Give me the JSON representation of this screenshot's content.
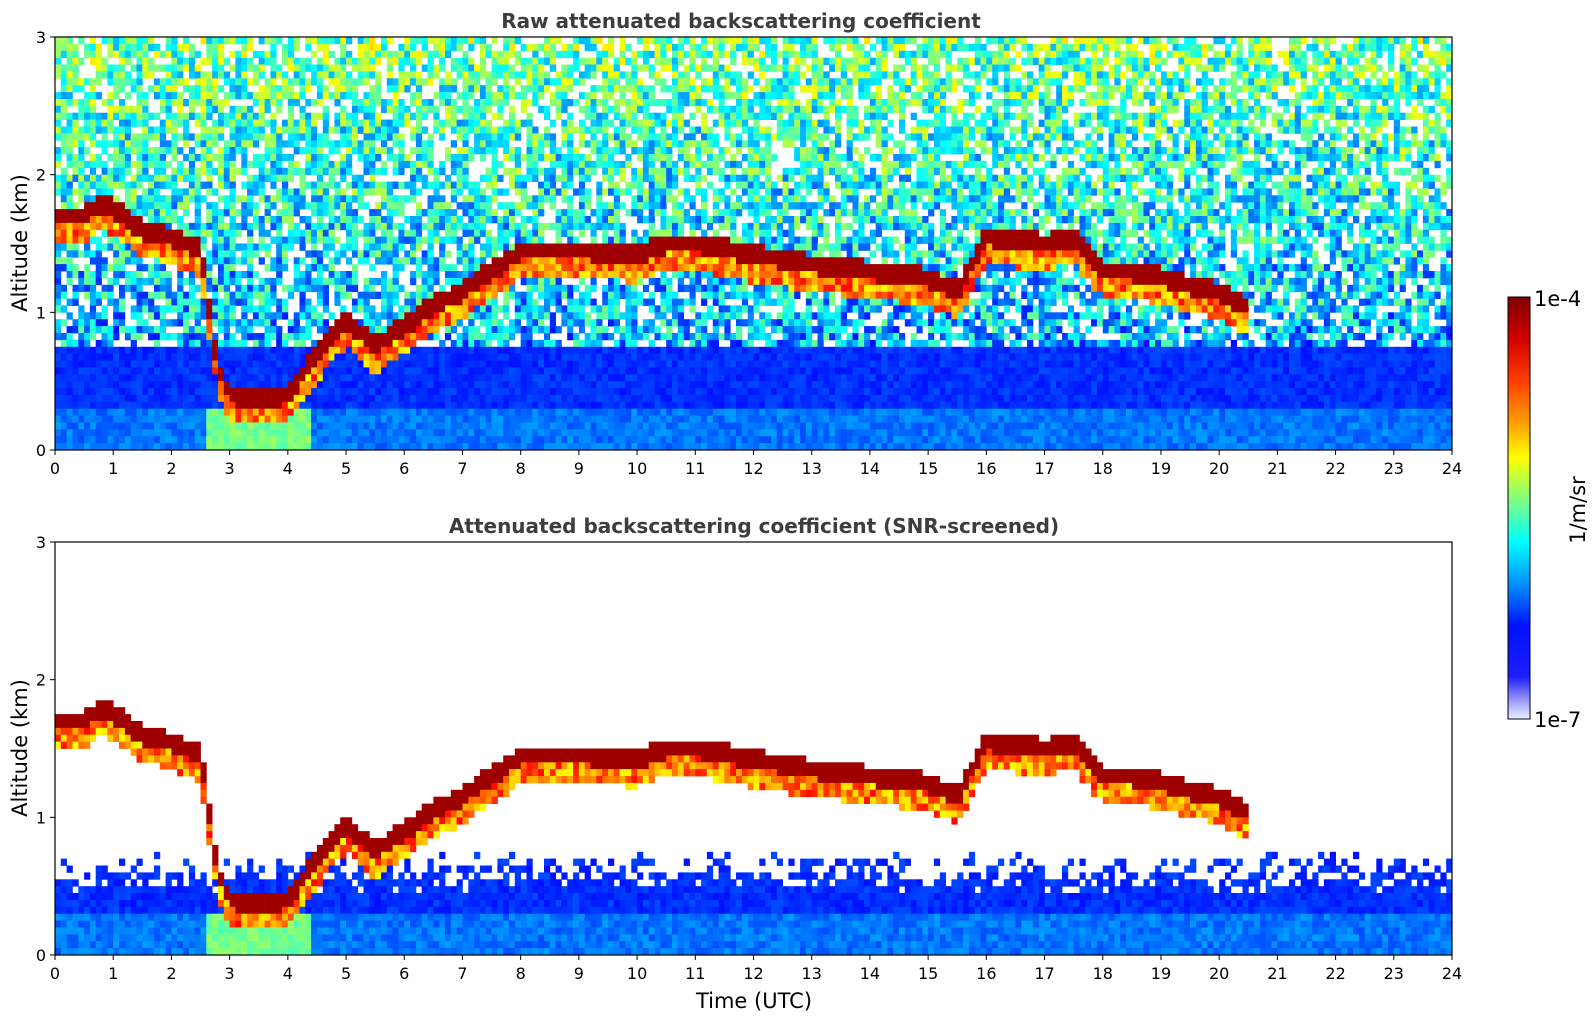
{
  "chart_data": [
    {
      "type": "heatmap",
      "title": "Raw attenuated backscattering coefficient",
      "ylabel": "Altitude (km)",
      "xlabel": "",
      "xlim": [
        0,
        24
      ],
      "ylim": [
        0,
        3
      ],
      "x_ticks": [
        "0",
        "1",
        "2",
        "3",
        "4",
        "5",
        "6",
        "7",
        "8",
        "9",
        "10",
        "11",
        "12",
        "13",
        "14",
        "15",
        "16",
        "17",
        "18",
        "19",
        "20",
        "21",
        "22",
        "23",
        "24"
      ],
      "y_ticks": [
        "0",
        "1",
        "2",
        "3"
      ],
      "colorscale": "jet",
      "cloud_layer": {
        "x": [
          0,
          0.5,
          0.8,
          1.0,
          1.5,
          2.0,
          2.5,
          2.8,
          3.0,
          3.5,
          4.0,
          4.5,
          5.0,
          5.5,
          6.0,
          6.5,
          7.0,
          7.5,
          8.0,
          9.0,
          10.0,
          10.5,
          11.0,
          12.0,
          13.0,
          14.0,
          15.0,
          15.5,
          16.0,
          17.0,
          17.5,
          18.0,
          18.5,
          19.0,
          19.5,
          20.0,
          20.4
        ],
        "y": [
          1.7,
          1.7,
          1.8,
          1.75,
          1.6,
          1.55,
          1.45,
          0.6,
          0.4,
          0.38,
          0.4,
          0.7,
          0.95,
          0.75,
          0.9,
          1.05,
          1.15,
          1.3,
          1.45,
          1.45,
          1.42,
          1.5,
          1.5,
          1.42,
          1.35,
          1.3,
          1.25,
          1.15,
          1.55,
          1.5,
          1.55,
          1.3,
          1.3,
          1.25,
          1.2,
          1.15,
          1.05
        ]
      }
    },
    {
      "type": "heatmap",
      "title": "Attenuated backscattering coefficient (SNR-screened)",
      "ylabel": "Altitude (km)",
      "xlabel": "Time (UTC)",
      "xlim": [
        0,
        24
      ],
      "ylim": [
        0,
        3
      ],
      "x_ticks": [
        "0",
        "1",
        "2",
        "3",
        "4",
        "5",
        "6",
        "7",
        "8",
        "9",
        "10",
        "11",
        "12",
        "13",
        "14",
        "15",
        "16",
        "17",
        "18",
        "19",
        "20",
        "21",
        "22",
        "23",
        "24"
      ],
      "y_ticks": [
        "0",
        "1",
        "2",
        "3"
      ],
      "colorscale": "jet",
      "cloud_layer": {
        "x": [
          0,
          0.5,
          0.8,
          1.0,
          1.5,
          2.0,
          2.5,
          2.8,
          3.0,
          3.5,
          4.0,
          4.5,
          5.0,
          5.5,
          6.0,
          6.5,
          7.0,
          7.5,
          8.0,
          9.0,
          10.0,
          10.5,
          11.0,
          12.0,
          13.0,
          14.0,
          15.0,
          15.5,
          16.0,
          17.0,
          17.5,
          18.0,
          18.5,
          19.0,
          19.5,
          20.0,
          20.4
        ],
        "y": [
          1.7,
          1.7,
          1.8,
          1.75,
          1.6,
          1.55,
          1.45,
          0.6,
          0.4,
          0.38,
          0.4,
          0.7,
          0.95,
          0.75,
          0.9,
          1.05,
          1.15,
          1.3,
          1.45,
          1.45,
          1.42,
          1.5,
          1.5,
          1.42,
          1.35,
          1.3,
          1.25,
          1.15,
          1.55,
          1.5,
          1.55,
          1.3,
          1.3,
          1.25,
          1.2,
          1.15,
          1.05
        ]
      }
    }
  ],
  "colorbar": {
    "label": "1/m/sr",
    "max_label": "1e-4",
    "min_label": "1e-7",
    "colors": [
      "#800000",
      "#ff0000",
      "#ff8000",
      "#ffff00",
      "#80ff80",
      "#00ffff",
      "#0080ff",
      "#0000ff",
      "#1414ff",
      "#6464ff",
      "#b4b4ff",
      "#eeeeff"
    ]
  }
}
